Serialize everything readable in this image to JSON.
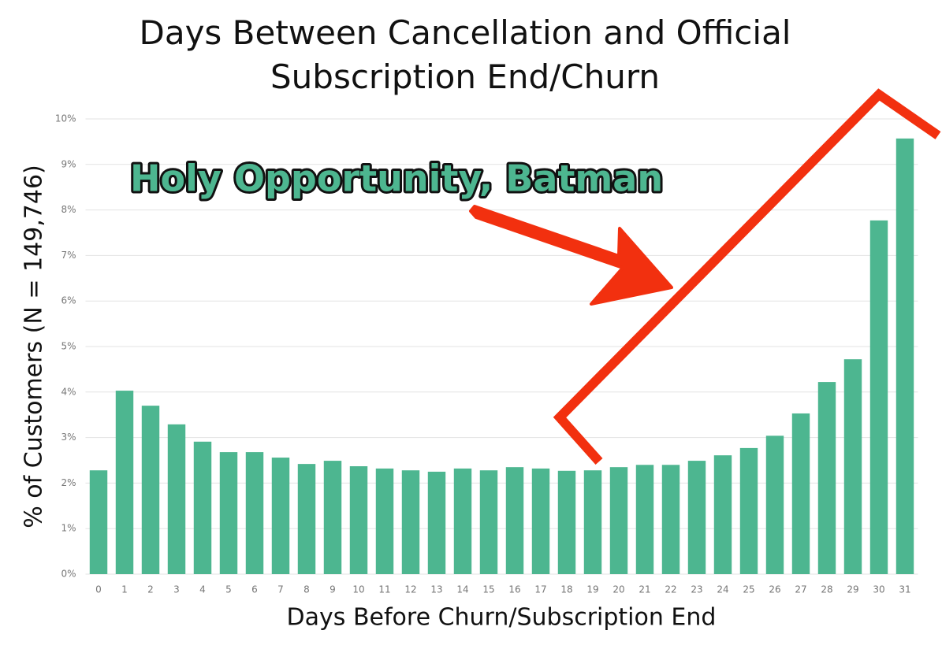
{
  "chart_data": {
    "type": "bar",
    "title": "Days Between Cancellation and Official Subscription End/Churn",
    "x_label": "Days Before Churn/Subscription End",
    "y_label": "% of Customers (N = 149,746)",
    "annotation": "Holy Opportunity, Batman",
    "categories": [
      "0",
      "1",
      "2",
      "3",
      "4",
      "5",
      "6",
      "7",
      "8",
      "9",
      "10",
      "11",
      "12",
      "13",
      "14",
      "15",
      "16",
      "17",
      "18",
      "19",
      "20",
      "21",
      "22",
      "23",
      "24",
      "25",
      "26",
      "27",
      "28",
      "29",
      "30",
      "31"
    ],
    "values": [
      2.28,
      4.03,
      3.7,
      3.29,
      2.91,
      2.68,
      2.68,
      2.56,
      2.42,
      2.49,
      2.37,
      2.32,
      2.28,
      2.25,
      2.32,
      2.28,
      2.35,
      2.32,
      2.27,
      2.28,
      2.35,
      2.4,
      2.4,
      2.49,
      2.61,
      2.77,
      3.04,
      3.53,
      4.22,
      4.72,
      7.77,
      9.57
    ],
    "color": "#4db690",
    "ylim": [
      0,
      10
    ],
    "yticks": [
      {
        "value": 0,
        "label": "0%"
      },
      {
        "value": 1,
        "label": "1%"
      },
      {
        "value": 2,
        "label": "2%"
      },
      {
        "value": 3,
        "label": "3%"
      },
      {
        "value": 4,
        "label": "4%"
      },
      {
        "value": 5,
        "label": "5%"
      },
      {
        "value": 6,
        "label": "6%"
      },
      {
        "value": 7,
        "label": "7%"
      },
      {
        "value": 8,
        "label": "8%"
      },
      {
        "value": 9,
        "label": "9%"
      },
      {
        "value": 10,
        "label": "10%"
      }
    ],
    "grid": true
  }
}
